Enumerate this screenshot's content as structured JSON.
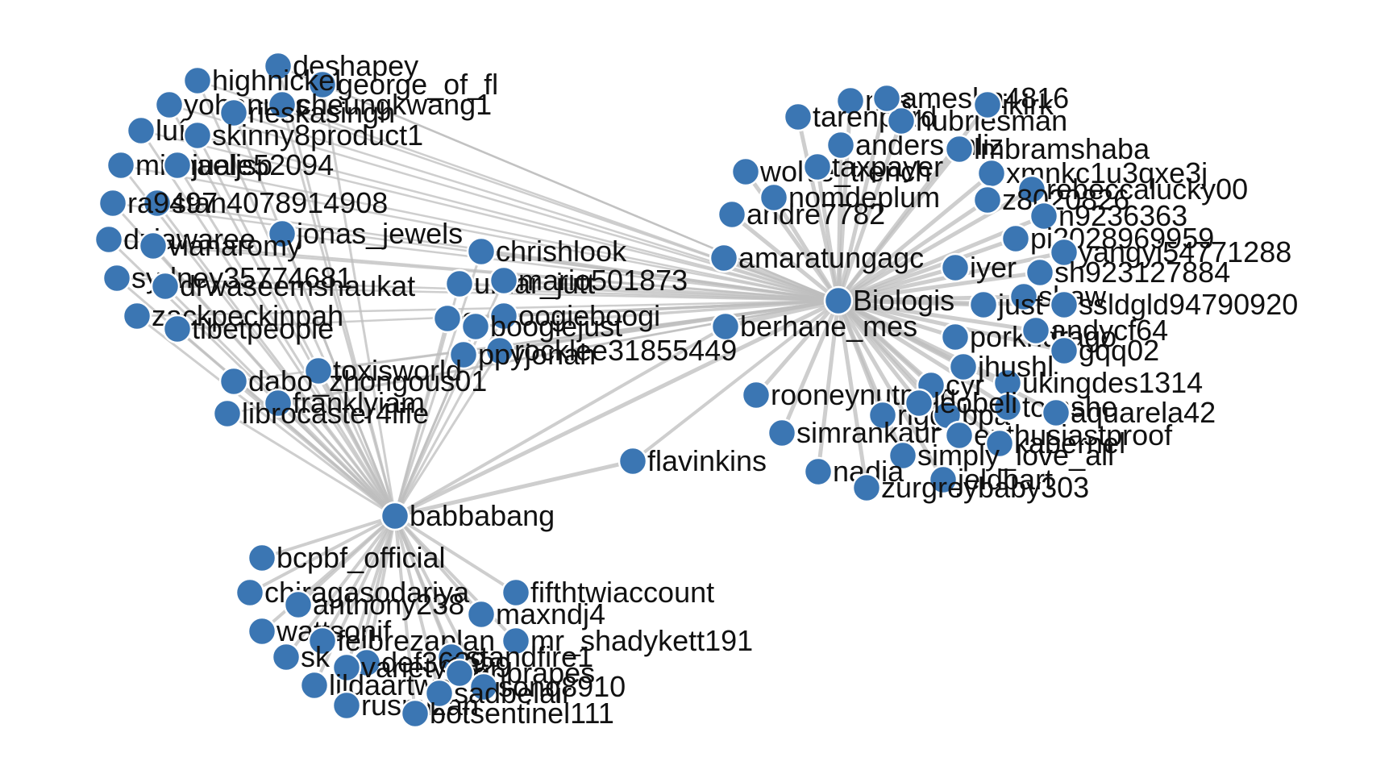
{
  "graph": {
    "node_color": "#3b76b3",
    "edge_color": "#bdbdbd",
    "background": "#ffffff",
    "hubs": [
      "Biologis",
      "babbabang",
      "berhane_mes",
      "flavinkins"
    ],
    "nodes": [
      {
        "id": "Biologis",
        "label": "Biologis"
      },
      {
        "id": "babbabang",
        "label": "babbabang"
      },
      {
        "id": "berhane_mes",
        "label": "berhane_mes"
      },
      {
        "id": "flavinkins",
        "label": "flavinkins"
      },
      {
        "id": "amaratungagc",
        "label": "amaratungagc"
      },
      {
        "id": "rooneynutmeg",
        "label": "rooneynutmeg"
      },
      {
        "id": "andre7782",
        "label": "andre7782"
      },
      {
        "id": "nomdeplum",
        "label": "nomdeplum"
      },
      {
        "id": "wolvestrench",
        "label": "wolve_trench"
      },
      {
        "id": "taxpayer",
        "label": "taxpayer"
      },
      {
        "id": "nes",
        "label": "nes"
      },
      {
        "id": "andersonliz",
        "label": "andersonliz"
      },
      {
        "id": "tarenpard",
        "label": "tarenpard"
      },
      {
        "id": "hubriesman",
        "label": "hubriesman"
      },
      {
        "id": "amesha",
        "label": "amesha4816"
      },
      {
        "id": "ikirk",
        "label": "ikirk"
      },
      {
        "id": "lmbramshaba",
        "label": "lmbramshaba"
      },
      {
        "id": "xmnkc1u3qxe3j",
        "label": "xmnkc1u3qxe3j"
      },
      {
        "id": "rebeccalucky00",
        "label": "rebeccalucky00"
      },
      {
        "id": "z8020826",
        "label": "z8020826"
      },
      {
        "id": "n9236363",
        "label": "n9236363"
      },
      {
        "id": "pi2028969959",
        "label": "pi2028969959"
      },
      {
        "id": "yangyi54771288",
        "label": "yangyi54771288"
      },
      {
        "id": "sh923127884",
        "label": "sh923127884"
      },
      {
        "id": "shaw",
        "label": "shaw"
      },
      {
        "id": "ssldgld94790920",
        "label": "ssldgld94790920"
      },
      {
        "id": "just",
        "label": "just"
      },
      {
        "id": "iyer",
        "label": "iyer"
      },
      {
        "id": "porkndragon",
        "label": "porkndrago"
      },
      {
        "id": "andycf64",
        "label": "andycf64"
      },
      {
        "id": "gqq02",
        "label": "gqq02"
      },
      {
        "id": "ukingdes1314",
        "label": "ukingdes1314"
      },
      {
        "id": "cyr",
        "label": "cyr"
      },
      {
        "id": "rigg",
        "label": "rigg"
      },
      {
        "id": "bpa",
        "label": "bpa"
      },
      {
        "id": "tomshe",
        "label": "tomshe"
      },
      {
        "id": "aquarela42",
        "label": "aquarela42"
      },
      {
        "id": "enthusiastproof",
        "label": "enthusiastproof"
      },
      {
        "id": "simrankaur",
        "label": "simrankaur"
      },
      {
        "id": "kabernel",
        "label": "kabernel"
      },
      {
        "id": "simply_love_all",
        "label": "simply_love_all"
      },
      {
        "id": "nadia",
        "label": "nadia"
      },
      {
        "id": "jeldbart",
        "label": "jeldbart"
      },
      {
        "id": "zurgreybaby303",
        "label": "zurgreybaby303"
      },
      {
        "id": "leobeli",
        "label": "leobeli"
      },
      {
        "id": "jhushl",
        "label": "jhushl"
      },
      {
        "id": "deshapey",
        "label": "deshapey"
      },
      {
        "id": "george_of_fl",
        "label": "george_of_fl"
      },
      {
        "id": "highnickel",
        "label": "highnickel"
      },
      {
        "id": "yohannes",
        "label": "yohannes"
      },
      {
        "id": "cheungkwang1",
        "label": "cheungkwang1"
      },
      {
        "id": "rieskasingh",
        "label": "rieskasingh"
      },
      {
        "id": "luisb",
        "label": "luís"
      },
      {
        "id": "skinny8product1",
        "label": "skinny8product1"
      },
      {
        "id": "michaeljsp",
        "label": "michaeljsp"
      },
      {
        "id": "juale52094",
        "label": "juale52094"
      },
      {
        "id": "stan4078914908",
        "label": "stan4078914908"
      },
      {
        "id": "ra9497",
        "label": "ra9497"
      },
      {
        "id": "dziawaree",
        "label": "dziawaree"
      },
      {
        "id": "jonas_jewels",
        "label": "jonas_jewels"
      },
      {
        "id": "vianaromy",
        "label": "vianaromy"
      },
      {
        "id": "sydney35774681",
        "label": "sydney35774681"
      },
      {
        "id": "drwaseemshaukat",
        "label": "drwaseemshaukat"
      },
      {
        "id": "zackpeckinpah",
        "label": "zackpeckinpah"
      },
      {
        "id": "tibetpeople",
        "label": "tibetpeople"
      },
      {
        "id": "chrishlook",
        "label": "chrishlook"
      },
      {
        "id": "umar_jutt",
        "label": "umar_jutt"
      },
      {
        "id": "mario501873",
        "label": "mario501873"
      },
      {
        "id": "a_boogie",
        "label": "a"
      },
      {
        "id": "oogieboogi",
        "label": "oogieboogi"
      },
      {
        "id": "boogie_just",
        "label": "boogiejust"
      },
      {
        "id": "rocklee31855449",
        "label": "rocklee31855449"
      },
      {
        "id": "ppyjonah",
        "label": "ppyjonah"
      },
      {
        "id": "toxisworld",
        "label": "toxisworld"
      },
      {
        "id": "dabo_zhongous01",
        "label": "dabo_zhongous01"
      },
      {
        "id": "franklyiam",
        "label": "franklyiam"
      },
      {
        "id": "librocaster4life",
        "label": "librocaster4life"
      },
      {
        "id": "bcpbf_official",
        "label": "bcpbf_official"
      },
      {
        "id": "chiragasodariya",
        "label": "chiragasodariya"
      },
      {
        "id": "anthony238",
        "label": "anthony238"
      },
      {
        "id": "fifthtwiaccount",
        "label": "fifthtwiaccount"
      },
      {
        "id": "maxndj4",
        "label": "maxndj4"
      },
      {
        "id": "wattsonif",
        "label": "wattsonif"
      },
      {
        "id": "feibrezaplan",
        "label": "feibrezaplan"
      },
      {
        "id": "mr_shadykett191",
        "label": "mr_shadykett191"
      },
      {
        "id": "standfire1",
        "label": "standfire1"
      },
      {
        "id": "skyp",
        "label": "sk"
      },
      {
        "id": "def3629",
        "label": "def3629"
      },
      {
        "id": "variety1029",
        "label": "variety1029"
      },
      {
        "id": "ghbrapes",
        "label": "ghbrapes"
      },
      {
        "id": "lildaartwo",
        "label": "lildaartwo"
      },
      {
        "id": "sonq8910",
        "label": "sonq8910"
      },
      {
        "id": "rusmizan",
        "label": "rusmizan"
      },
      {
        "id": "sadbelair",
        "label": "sadbelair"
      },
      {
        "id": "botsentinel111",
        "label": "botsentinel111"
      }
    ]
  }
}
